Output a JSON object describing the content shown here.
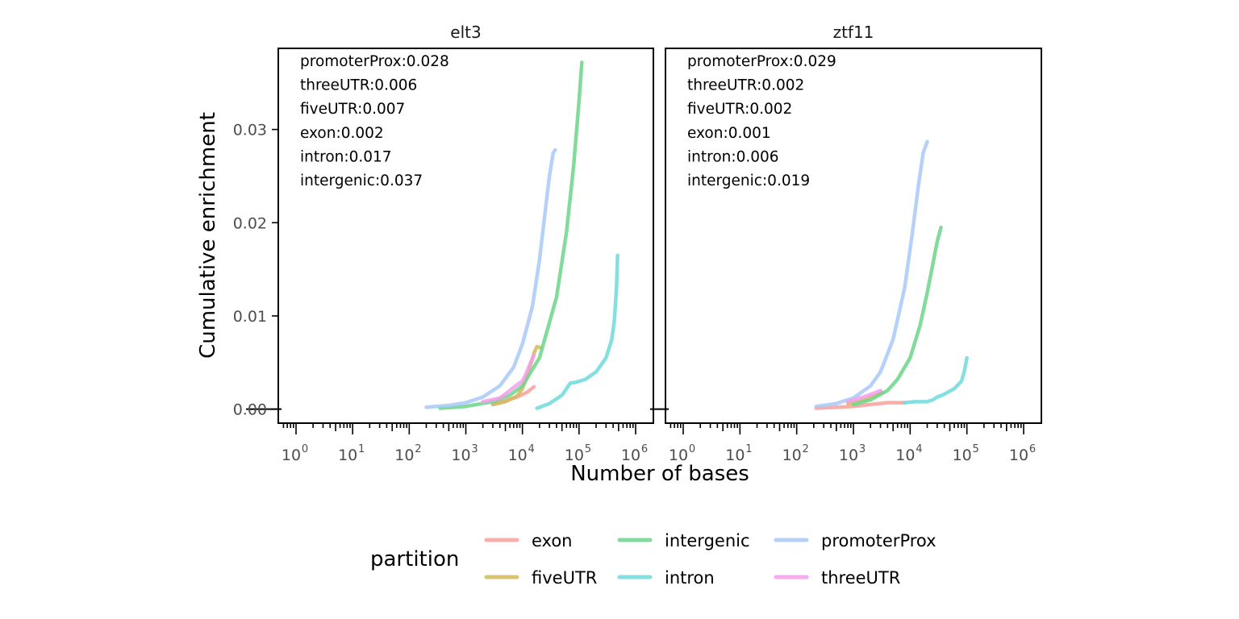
{
  "chart_data": {
    "type": "line",
    "facet_variable": "",
    "ylabel": "Cumulative enrichment",
    "xlabel": "Number of bases",
    "x_scale": "log10",
    "xlim": [
      1,
      1000000
    ],
    "ylim": [
      -0.0015,
      0.0387
    ],
    "y_ticks": [
      0.0,
      0.01,
      0.02,
      0.03
    ],
    "y_tick_labels": [
      "0.00",
      "0.01",
      "0.02",
      "0.03"
    ],
    "x_tick_exponents": [
      "0",
      "1",
      "2",
      "3",
      "4",
      "5",
      "6"
    ],
    "grid": false,
    "legend": {
      "title": "partition",
      "position": "bottom",
      "entries": [
        {
          "name": "exon",
          "color": "#F8A19A"
        },
        {
          "name": "fiveUTR",
          "color": "#D2BA5E"
        },
        {
          "name": "intergenic",
          "color": "#6CD58A"
        },
        {
          "name": "intron",
          "color": "#6FDADB"
        },
        {
          "name": "promoterProx",
          "color": "#A8C8F8"
        },
        {
          "name": "threeUTR",
          "color": "#F39CEB"
        }
      ]
    },
    "panels": [
      {
        "title": "elt3",
        "annotations": [
          "promoterProx:0.028",
          "threeUTR:0.006",
          "fiveUTR:0.007",
          "exon:0.002",
          "intron:0.017",
          "intergenic:0.037"
        ],
        "series": [
          {
            "name": "exon",
            "points": [
              [
                3000,
                0.0005
              ],
              [
                5000,
                0.0009
              ],
              [
                8000,
                0.0013
              ],
              [
                12000,
                0.0018
              ],
              [
                16000,
                0.0024
              ]
            ]
          },
          {
            "name": "fiveUTR",
            "points": [
              [
                3000,
                0.0005
              ],
              [
                5000,
                0.0008
              ],
              [
                8000,
                0.0014
              ],
              [
                10000,
                0.0022
              ],
              [
                12000,
                0.0035
              ],
              [
                14000,
                0.0048
              ],
              [
                16000,
                0.006
              ],
              [
                18000,
                0.0067
              ],
              [
                21000,
                0.0066
              ]
            ]
          },
          {
            "name": "intergenic",
            "points": [
              [
                350,
                0.0001
              ],
              [
                1000,
                0.0003
              ],
              [
                3000,
                0.0008
              ],
              [
                6000,
                0.0015
              ],
              [
                10000,
                0.0025
              ],
              [
                20000,
                0.0055
              ],
              [
                40000,
                0.012
              ],
              [
                60000,
                0.019
              ],
              [
                80000,
                0.026
              ],
              [
                100000,
                0.033
              ],
              [
                112000,
                0.0372
              ]
            ]
          },
          {
            "name": "intron",
            "points": [
              [
                18000,
                0.0001
              ],
              [
                30000,
                0.0006
              ],
              [
                50000,
                0.0015
              ],
              [
                60000,
                0.0022
              ],
              [
                70000,
                0.0028
              ],
              [
                90000,
                0.0029
              ],
              [
                130000,
                0.0032
              ],
              [
                200000,
                0.004
              ],
              [
                300000,
                0.0055
              ],
              [
                380000,
                0.0075
              ],
              [
                420000,
                0.0095
              ],
              [
                460000,
                0.013
              ],
              [
                480000,
                0.0165
              ]
            ]
          },
          {
            "name": "promoterProx",
            "points": [
              [
                200,
                0.0002
              ],
              [
                500,
                0.0004
              ],
              [
                1000,
                0.0007
              ],
              [
                2000,
                0.0013
              ],
              [
                4000,
                0.0025
              ],
              [
                7000,
                0.0045
              ],
              [
                10000,
                0.007
              ],
              [
                15000,
                0.011
              ],
              [
                20000,
                0.016
              ],
              [
                25000,
                0.021
              ],
              [
                30000,
                0.025
              ],
              [
                35000,
                0.0275
              ],
              [
                38000,
                0.0278
              ]
            ]
          },
          {
            "name": "threeUTR",
            "points": [
              [
                2000,
                0.0008
              ],
              [
                4000,
                0.0012
              ],
              [
                6000,
                0.002
              ],
              [
                8000,
                0.0026
              ],
              [
                10000,
                0.003
              ],
              [
                12000,
                0.004
              ],
              [
                14000,
                0.005
              ],
              [
                16000,
                0.0058
              ]
            ]
          }
        ]
      },
      {
        "title": "ztf11",
        "annotations": [
          "promoterProx:0.029",
          "threeUTR:0.002",
          "fiveUTR:0.002",
          "exon:0.001",
          "intron:0.006",
          "intergenic:0.019"
        ],
        "series": [
          {
            "name": "exon",
            "points": [
              [
                220,
                0.0001
              ],
              [
                500,
                0.0002
              ],
              [
                1000,
                0.0003
              ],
              [
                2000,
                0.0005
              ],
              [
                4000,
                0.0007
              ],
              [
                8000,
                0.0007
              ]
            ]
          },
          {
            "name": "fiveUTR",
            "points": [
              [
                800,
                0.0006
              ],
              [
                1500,
                0.001
              ],
              [
                2500,
                0.0015
              ],
              [
                3200,
                0.0018
              ]
            ]
          },
          {
            "name": "intergenic",
            "points": [
              [
                1000,
                0.0005
              ],
              [
                2000,
                0.001
              ],
              [
                4000,
                0.002
              ],
              [
                6000,
                0.0032
              ],
              [
                10000,
                0.0055
              ],
              [
                15000,
                0.009
              ],
              [
                20000,
                0.0125
              ],
              [
                25000,
                0.0155
              ],
              [
                30000,
                0.018
              ],
              [
                35000,
                0.0195
              ]
            ]
          },
          {
            "name": "intron",
            "points": [
              [
                8000,
                0.0007
              ],
              [
                12000,
                0.0008
              ],
              [
                20000,
                0.0008
              ],
              [
                25000,
                0.001
              ],
              [
                30000,
                0.0013
              ],
              [
                40000,
                0.0016
              ],
              [
                60000,
                0.0022
              ],
              [
                80000,
                0.003
              ],
              [
                90000,
                0.004
              ],
              [
                100000,
                0.0055
              ]
            ]
          },
          {
            "name": "promoterProx",
            "points": [
              [
                220,
                0.0003
              ],
              [
                500,
                0.0006
              ],
              [
                1000,
                0.0012
              ],
              [
                2000,
                0.0025
              ],
              [
                3000,
                0.004
              ],
              [
                5000,
                0.0075
              ],
              [
                8000,
                0.013
              ],
              [
                11000,
                0.019
              ],
              [
                14000,
                0.024
              ],
              [
                17000,
                0.0275
              ],
              [
                20000,
                0.0287
              ]
            ]
          },
          {
            "name": "threeUTR",
            "points": [
              [
                800,
                0.0008
              ],
              [
                1500,
                0.0013
              ],
              [
                2500,
                0.0018
              ],
              [
                3000,
                0.002
              ]
            ]
          }
        ]
      }
    ]
  }
}
